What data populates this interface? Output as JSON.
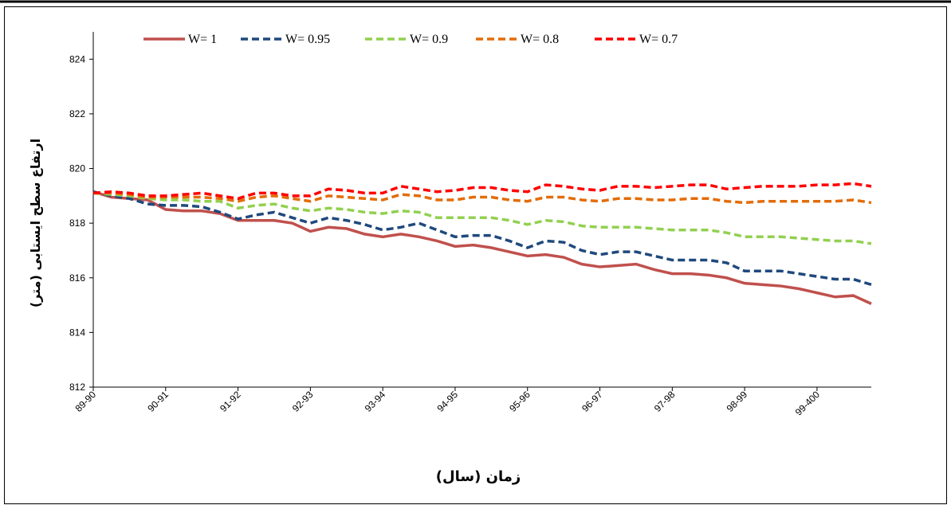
{
  "chart_data": {
    "type": "line",
    "x_label": "زمان (سال)",
    "y_label": "ارتفاع سطح ایستابی (متر)",
    "categories": [
      "89-90",
      null,
      null,
      null,
      "90-91",
      null,
      null,
      null,
      "91-92",
      null,
      null,
      null,
      "92-93",
      null,
      null,
      null,
      "93-94",
      null,
      null,
      null,
      "94-95",
      null,
      null,
      null,
      "95-96",
      null,
      null,
      null,
      "96-97",
      null,
      null,
      null,
      "97-98",
      null,
      null,
      null,
      "98-99",
      null,
      null,
      null,
      "99-400",
      null,
      null,
      null
    ],
    "ylim": [
      812,
      825
    ],
    "yticks": [
      812,
      814,
      816,
      818,
      820,
      822,
      824
    ],
    "grid": false,
    "legend": "top",
    "series": [
      {
        "name": "W= 1",
        "color": "#c0504d",
        "dashed": false,
        "values": [
          819.15,
          818.95,
          818.9,
          818.85,
          818.5,
          818.45,
          818.45,
          818.35,
          818.1,
          818.1,
          818.1,
          818.0,
          817.7,
          817.85,
          817.8,
          817.6,
          817.5,
          817.6,
          817.5,
          817.35,
          817.15,
          817.2,
          817.1,
          816.95,
          816.8,
          816.85,
          816.75,
          816.5,
          816.4,
          816.45,
          816.5,
          816.3,
          816.15,
          816.15,
          816.1,
          816.0,
          815.8,
          815.75,
          815.7,
          815.6,
          815.45,
          815.3,
          815.35,
          815.05
        ]
      },
      {
        "name": "W= 0.95",
        "color": "#1f497d",
        "dashed": true,
        "values": [
          819.15,
          819.0,
          818.9,
          818.7,
          818.65,
          818.65,
          818.6,
          818.4,
          818.15,
          818.3,
          818.4,
          818.2,
          818.0,
          818.2,
          818.1,
          817.95,
          817.75,
          817.85,
          818.0,
          817.75,
          817.5,
          817.55,
          817.55,
          817.35,
          817.1,
          817.35,
          817.3,
          817.0,
          816.85,
          816.95,
          816.95,
          816.8,
          816.65,
          816.65,
          816.65,
          816.55,
          816.25,
          816.25,
          816.25,
          816.15,
          816.05,
          815.95,
          815.95,
          815.75
        ]
      },
      {
        "name": "W= 0.9",
        "color": "#92d050",
        "dashed": true,
        "values": [
          819.1,
          819.05,
          819.0,
          818.9,
          818.85,
          818.85,
          818.8,
          818.8,
          818.55,
          818.65,
          818.7,
          818.55,
          818.45,
          818.55,
          818.5,
          818.4,
          818.35,
          818.45,
          818.4,
          818.2,
          818.2,
          818.2,
          818.2,
          818.1,
          817.95,
          818.1,
          818.05,
          817.9,
          817.85,
          817.85,
          817.85,
          817.8,
          817.75,
          817.75,
          817.75,
          817.65,
          817.5,
          817.5,
          817.5,
          817.45,
          817.4,
          817.35,
          817.35,
          817.25
        ]
      },
      {
        "name": "W= 0.8",
        "color": "#e36c09",
        "dashed": true,
        "values": [
          819.1,
          819.1,
          819.05,
          818.95,
          818.95,
          818.95,
          818.95,
          818.9,
          818.8,
          818.95,
          819.0,
          818.9,
          818.8,
          819.0,
          818.95,
          818.9,
          818.85,
          819.05,
          819.0,
          818.85,
          818.85,
          818.95,
          818.95,
          818.85,
          818.8,
          818.95,
          818.95,
          818.85,
          818.8,
          818.9,
          818.9,
          818.85,
          818.85,
          818.9,
          818.9,
          818.8,
          818.75,
          818.8,
          818.8,
          818.8,
          818.8,
          818.8,
          818.85,
          818.75
        ]
      },
      {
        "name": "W= 0.7",
        "color": "#ff0000",
        "dashed": true,
        "values": [
          819.1,
          819.15,
          819.1,
          819.0,
          819.0,
          819.05,
          819.1,
          819.0,
          818.9,
          819.1,
          819.1,
          819.0,
          819.0,
          819.25,
          819.2,
          819.1,
          819.1,
          819.35,
          819.25,
          819.15,
          819.2,
          819.3,
          819.3,
          819.2,
          819.15,
          819.4,
          819.35,
          819.25,
          819.2,
          819.35,
          819.35,
          819.3,
          819.35,
          819.4,
          819.4,
          819.25,
          819.3,
          819.35,
          819.35,
          819.35,
          819.4,
          819.4,
          819.45,
          819.35
        ]
      }
    ]
  }
}
